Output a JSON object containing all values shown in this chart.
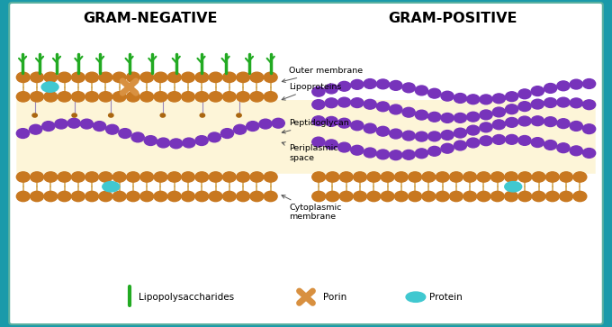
{
  "title_neg": "GRAM-NEGATIVE",
  "title_pos": "GRAM-POSITIVE",
  "bg_outer": "#1a9aaa",
  "bg_white": "#ffffff",
  "bg_periplasm": "#fdf5d8",
  "membrane_color": "#c87820",
  "membrane_tail": "#d4a060",
  "peptidoglycan_color": "#7733bb",
  "lps_color": "#22aa22",
  "protein_color": "#40c8d0",
  "porin_color": "#d89040",
  "labels": {
    "outer_membrane": "Outer membrane",
    "lipoproteins": "Lipoproteins",
    "peptidoglycan": "Peptidoglycan",
    "periplasmic": "Periplasmic\nspace",
    "cytoplasmic": "Cytoplasmic\nmembrane"
  },
  "legend": {
    "lps": "Lipopolysaccharides",
    "porin": "Porin",
    "protein": "Protein"
  }
}
